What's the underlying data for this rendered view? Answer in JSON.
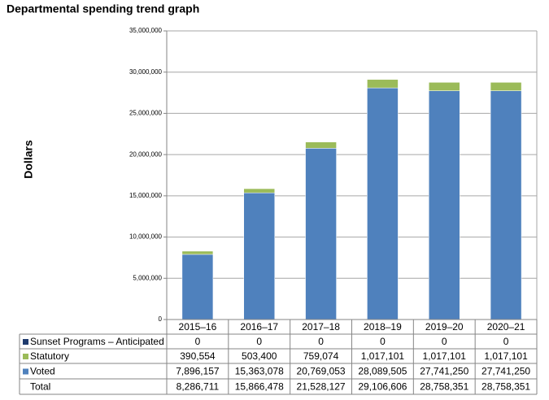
{
  "chart_data": {
    "type": "stacked-bar",
    "title": "Departmental spending trend graph",
    "y_label": "Dollars",
    "categories": [
      "2015–16",
      "2016–17",
      "2017–18",
      "2018–19",
      "2019–20",
      "2020–21"
    ],
    "series": [
      {
        "name": "Sunset Programs – Anticipated",
        "color": "#1f3b6e",
        "values": [
          0,
          0,
          0,
          0,
          0,
          0
        ],
        "value_labels": [
          "0",
          "0",
          "0",
          "0",
          "0",
          "0"
        ]
      },
      {
        "name": "Statutory",
        "color": "#9bbb59",
        "values": [
          390554,
          503400,
          759074,
          1017101,
          1017101,
          1017101
        ],
        "value_labels": [
          "390,554",
          "503,400",
          "759,074",
          "1,017,101",
          "1,017,101",
          "1,017,101"
        ]
      },
      {
        "name": "Voted",
        "color": "#4f81bd",
        "values": [
          7896157,
          15363078,
          20769053,
          28089505,
          27741250,
          27741250
        ],
        "value_labels": [
          "7,896,157",
          "15,363,078",
          "20,769,053",
          "28,089,505",
          "27,741,250",
          "27,741,250"
        ]
      }
    ],
    "total": {
      "name": "Total",
      "values": [
        8286711,
        15866478,
        21528127,
        29106606,
        28758351,
        28758351
      ],
      "value_labels": [
        "8,286,711",
        "15,866,478",
        "21,528,127",
        "29,106,606",
        "28,758,351",
        "28,758,351"
      ]
    },
    "ylim": [
      0,
      35000000
    ],
    "yticks": [
      0,
      {
        "value": 5000000,
        "label": "5,000,000"
      },
      {
        "value": 10000000,
        "label": "10,000,000"
      },
      {
        "value": 15000000,
        "label": "15,000,000"
      },
      {
        "value": 20000000,
        "label": "20,000,000"
      },
      {
        "value": 25000000,
        "label": "25,000,000"
      },
      {
        "value": 30000000,
        "label": "30,000,000"
      },
      {
        "value": 35000000,
        "label": "35,000,000"
      }
    ],
    "grid": true
  }
}
